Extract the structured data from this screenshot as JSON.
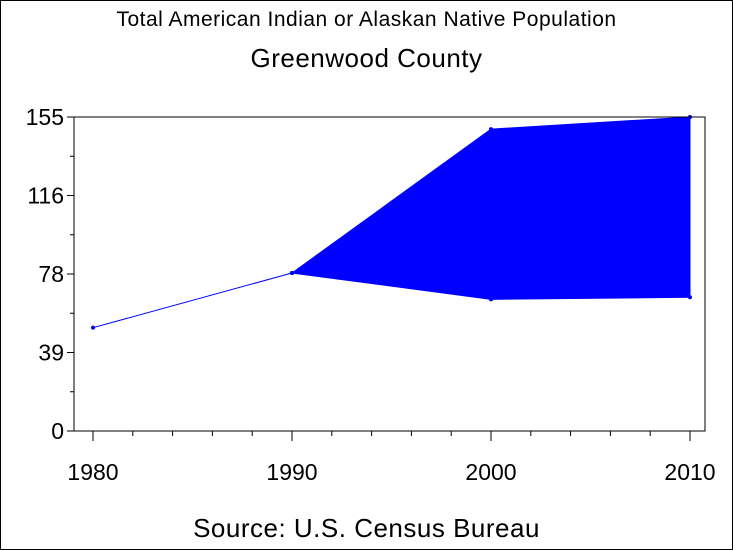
{
  "header": {
    "title": "Total American Indian or Alaskan Native Population",
    "subtitle": "Greenwood County"
  },
  "footer": {
    "source": "Source: U.S. Census Bureau"
  },
  "chart_data": {
    "type": "area",
    "title": "Total American Indian or Alaskan Native Population",
    "subtitle": "Greenwood County",
    "xlabel": "",
    "ylabel": "",
    "x_ticks": [
      "1980",
      "1990",
      "2000",
      "2010"
    ],
    "y_ticks": [
      "0",
      "39",
      "78",
      "116",
      "155"
    ],
    "ylim": [
      0,
      155
    ],
    "xlim": [
      1980,
      2010
    ],
    "grid": false,
    "line_color": "#0000ff",
    "fill_color": "#0000ff",
    "line": {
      "x": [
        1980,
        1990
      ],
      "y": [
        51,
        78
      ]
    },
    "band": {
      "x": [
        1990,
        2000,
        2010
      ],
      "upper": [
        78,
        149,
        155
      ],
      "lower": [
        78,
        65,
        66
      ]
    }
  }
}
